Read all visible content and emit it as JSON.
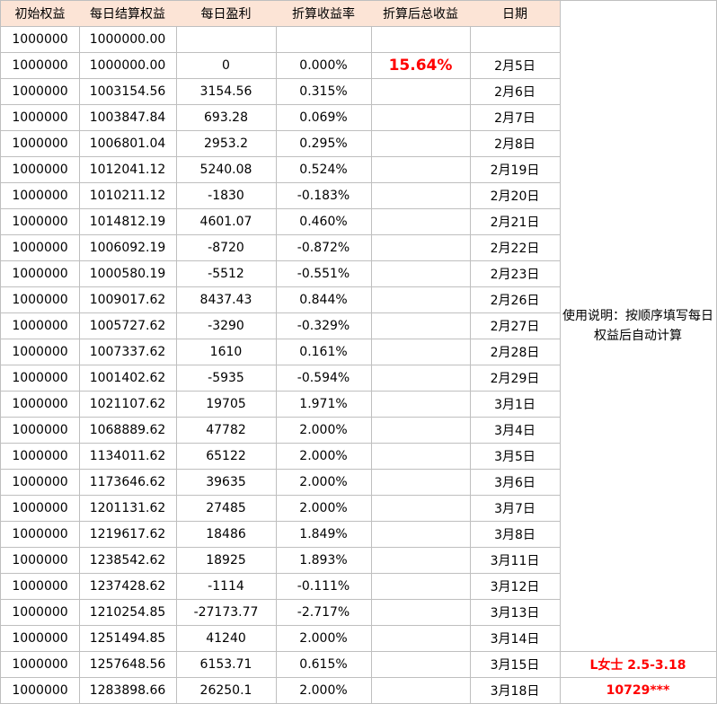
{
  "table": {
    "headers": [
      "初始权益",
      "每日结算权益",
      "每日盈利",
      "折算收益率",
      "折算后总收益",
      "日期"
    ],
    "rows": [
      [
        "1000000",
        "1000000.00",
        null,
        null,
        null,
        null
      ],
      [
        "1000000",
        "1000000.00",
        "0",
        "0.000%",
        "15.64%",
        "2月5日"
      ],
      [
        "1000000",
        "1003154.56",
        "3154.56",
        "0.315%",
        null,
        "2月6日"
      ],
      [
        "1000000",
        "1003847.84",
        "693.28",
        "0.069%",
        null,
        "2月7日"
      ],
      [
        "1000000",
        "1006801.04",
        "2953.2",
        "0.295%",
        null,
        "2月8日"
      ],
      [
        "1000000",
        "1012041.12",
        "5240.08",
        "0.524%",
        null,
        "2月19日"
      ],
      [
        "1000000",
        "1010211.12",
        "-1830",
        "-0.183%",
        null,
        "2月20日"
      ],
      [
        "1000000",
        "1014812.19",
        "4601.07",
        "0.460%",
        null,
        "2月21日"
      ],
      [
        "1000000",
        "1006092.19",
        "-8720",
        "-0.872%",
        null,
        "2月22日"
      ],
      [
        "1000000",
        "1000580.19",
        "-5512",
        "-0.551%",
        null,
        "2月23日"
      ],
      [
        "1000000",
        "1009017.62",
        "8437.43",
        "0.844%",
        null,
        "2月26日"
      ],
      [
        "1000000",
        "1005727.62",
        "-3290",
        "-0.329%",
        null,
        "2月27日"
      ],
      [
        "1000000",
        "1007337.62",
        "1610",
        "0.161%",
        null,
        "2月28日"
      ],
      [
        "1000000",
        "1001402.62",
        "-5935",
        "-0.594%",
        null,
        "2月29日"
      ],
      [
        "1000000",
        "1021107.62",
        "19705",
        "1.971%",
        null,
        "3月1日"
      ],
      [
        "1000000",
        "1068889.62",
        "47782",
        "2.000%",
        null,
        "3月4日"
      ],
      [
        "1000000",
        "1134011.62",
        "65122",
        "2.000%",
        null,
        "3月5日"
      ],
      [
        "1000000",
        "1173646.62",
        "39635",
        "2.000%",
        null,
        "3月6日"
      ],
      [
        "1000000",
        "1201131.62",
        "27485",
        "2.000%",
        null,
        "3月7日"
      ],
      [
        "1000000",
        "1219617.62",
        "18486",
        "1.849%",
        null,
        "3月8日"
      ],
      [
        "1000000",
        "1238542.62",
        "18925",
        "1.893%",
        null,
        "3月11日"
      ],
      [
        "1000000",
        "1237428.62",
        "-1114",
        "-0.111%",
        null,
        "3月12日"
      ],
      [
        "1000000",
        "1210254.85",
        "-27173.77",
        "-2.717%",
        null,
        "3月13日"
      ],
      [
        "1000000",
        "1251494.85",
        "41240",
        "2.000%",
        null,
        "3月14日"
      ],
      [
        "1000000",
        "1257648.56",
        "6153.71",
        "0.615%",
        null,
        "3月15日"
      ],
      [
        "1000000",
        "1283898.66",
        "26250.1",
        "2.000%",
        null,
        "3月18日"
      ]
    ]
  },
  "note": "使用说明：按顺序填写每日权益后自动计算",
  "signature": [
    "L女士 2.5-3.18",
    "10729***"
  ]
}
